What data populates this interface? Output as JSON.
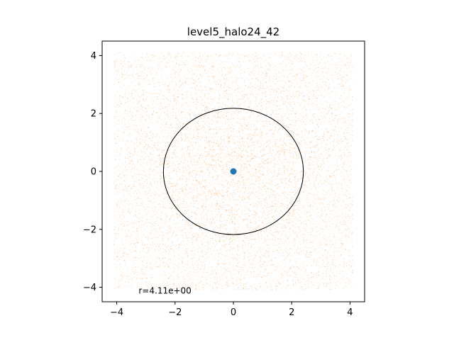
{
  "chart_data": {
    "type": "scatter",
    "title": "level5_halo24_42",
    "xlabel": "",
    "ylabel": "",
    "xlim": [
      -4.5,
      4.5
    ],
    "ylim": [
      -4.5,
      4.5
    ],
    "xticks": [
      -4,
      -2,
      0,
      2,
      4
    ],
    "yticks": [
      -4,
      -2,
      0,
      2,
      4
    ],
    "xtick_labels": [
      "−4",
      "−2",
      "0",
      "2",
      "4"
    ],
    "ytick_labels": [
      "−4",
      "−2",
      "0",
      "2",
      "4"
    ],
    "grid": false,
    "series": [
      {
        "kind": "background-particles",
        "color": "#ff7f0e",
        "distribution": "uniform over square, denser toward center",
        "extent": [
          -4.1,
          4.1
        ],
        "count": 9000
      },
      {
        "kind": "center-point",
        "color": "#1f77b4",
        "points": [
          [
            0,
            0
          ]
        ]
      }
    ],
    "circle": {
      "center": [
        0,
        0
      ],
      "rx": 2.4,
      "ry": 2.18,
      "color": "#000000"
    },
    "annotation": {
      "text": "r=4.11e+00",
      "x": -3.25,
      "y": -4.12
    }
  }
}
